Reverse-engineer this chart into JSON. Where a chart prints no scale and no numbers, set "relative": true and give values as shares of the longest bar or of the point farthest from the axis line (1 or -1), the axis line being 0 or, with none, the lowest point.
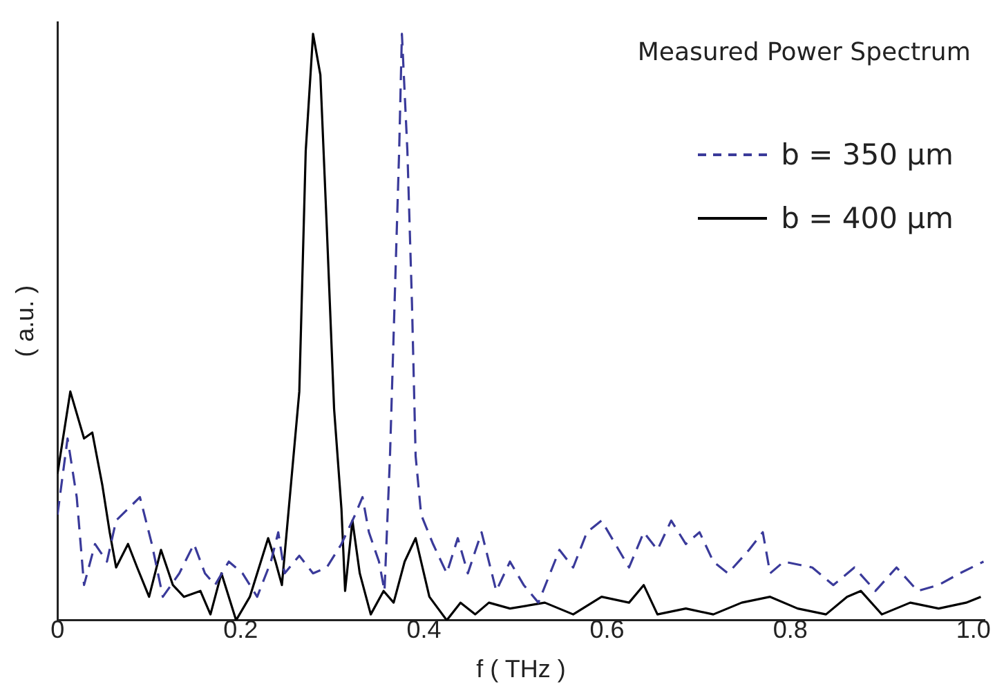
{
  "chart_data": {
    "type": "line",
    "title": "Measured Power Spectrum",
    "xlabel": "f ( THz )",
    "ylabel": "( a.u. )",
    "relative": true,
    "xlim": [
      0,
      1.012
    ],
    "xticks": [
      0,
      0.2,
      0.4,
      0.6,
      0.8,
      {
        "value": 1.0,
        "label": "1.0"
      }
    ],
    "legend": "top right",
    "grid": false,
    "marker": "none",
    "series": [
      {
        "name": "b = 350 μm",
        "color": "#3a3a9a",
        "line_style": "dashed",
        "x": [
          0,
          0.011,
          0.021,
          0.029,
          0.041,
          0.054,
          0.064,
          0.09,
          0.103,
          0.115,
          0.133,
          0.149,
          0.161,
          0.172,
          0.187,
          0.202,
          0.218,
          0.233,
          0.241,
          0.248,
          0.264,
          0.279,
          0.294,
          0.31,
          0.325,
          0.333,
          0.34,
          0.351,
          0.357,
          0.363,
          0.368,
          0.373,
          0.376,
          0.382,
          0.387,
          0.391,
          0.397,
          0.41,
          0.425,
          0.437,
          0.448,
          0.463,
          0.479,
          0.494,
          0.509,
          0.525,
          0.548,
          0.563,
          0.578,
          0.594,
          0.609,
          0.624,
          0.64,
          0.655,
          0.67,
          0.686,
          0.701,
          0.716,
          0.732,
          0.755,
          0.77,
          0.778,
          0.793,
          0.824,
          0.847,
          0.87,
          0.893,
          0.916,
          0.939,
          0.962,
          0.985,
          1.011
        ],
        "values": [
          0.18,
          0.31,
          0.21,
          0.06,
          0.13,
          0.1,
          0.17,
          0.21,
          0.13,
          0.04,
          0.08,
          0.13,
          0.08,
          0.06,
          0.1,
          0.08,
          0.04,
          0.1,
          0.15,
          0.08,
          0.11,
          0.08,
          0.09,
          0.13,
          0.18,
          0.21,
          0.15,
          0.1,
          0.05,
          0.28,
          0.54,
          0.8,
          1,
          0.8,
          0.54,
          0.28,
          0.18,
          0.13,
          0.08,
          0.14,
          0.08,
          0.15,
          0.05,
          0.1,
          0.06,
          0.03,
          0.12,
          0.09,
          0.15,
          0.17,
          0.13,
          0.09,
          0.15,
          0.12,
          0.17,
          0.13,
          0.15,
          0.1,
          0.08,
          0.12,
          0.15,
          0.08,
          0.1,
          0.09,
          0.06,
          0.09,
          0.05,
          0.09,
          0.05,
          0.06,
          0.08,
          0.1
        ]
      },
      {
        "name": "b = 400 μm",
        "color": "#000000",
        "line_style": "solid",
        "x": [
          0,
          0.014,
          0.029,
          0.038,
          0.049,
          0.057,
          0.064,
          0.077,
          0.087,
          0.1,
          0.113,
          0.126,
          0.138,
          0.156,
          0.167,
          0.179,
          0.195,
          0.21,
          0.23,
          0.238,
          0.245,
          0.264,
          0.271,
          0.279,
          0.287,
          0.294,
          0.302,
          0.31,
          0.314,
          0.322,
          0.33,
          0.342,
          0.356,
          0.367,
          0.379,
          0.391,
          0.406,
          0.425,
          0.44,
          0.456,
          0.471,
          0.494,
          0.532,
          0.563,
          0.594,
          0.624,
          0.64,
          0.655,
          0.686,
          0.716,
          0.747,
          0.778,
          0.808,
          0.839,
          0.862,
          0.877,
          0.9,
          0.931,
          0.962,
          0.992,
          1.008
        ],
        "values": [
          0.25,
          0.39,
          0.31,
          0.32,
          0.23,
          0.15,
          0.09,
          0.13,
          0.09,
          0.04,
          0.12,
          0.06,
          0.04,
          0.05,
          0.01,
          0.08,
          0,
          0.04,
          0.14,
          0.1,
          0.06,
          0.39,
          0.8,
          1,
          0.93,
          0.67,
          0.36,
          0.19,
          0.05,
          0.17,
          0.08,
          0.01,
          0.05,
          0.03,
          0.1,
          0.14,
          0.04,
          0,
          0.03,
          0.01,
          0.03,
          0.02,
          0.03,
          0.01,
          0.04,
          0.03,
          0.06,
          0.01,
          0.02,
          0.01,
          0.03,
          0.04,
          0.02,
          0.01,
          0.04,
          0.05,
          0.01,
          0.03,
          0.02,
          0.03,
          0.04
        ]
      }
    ]
  }
}
